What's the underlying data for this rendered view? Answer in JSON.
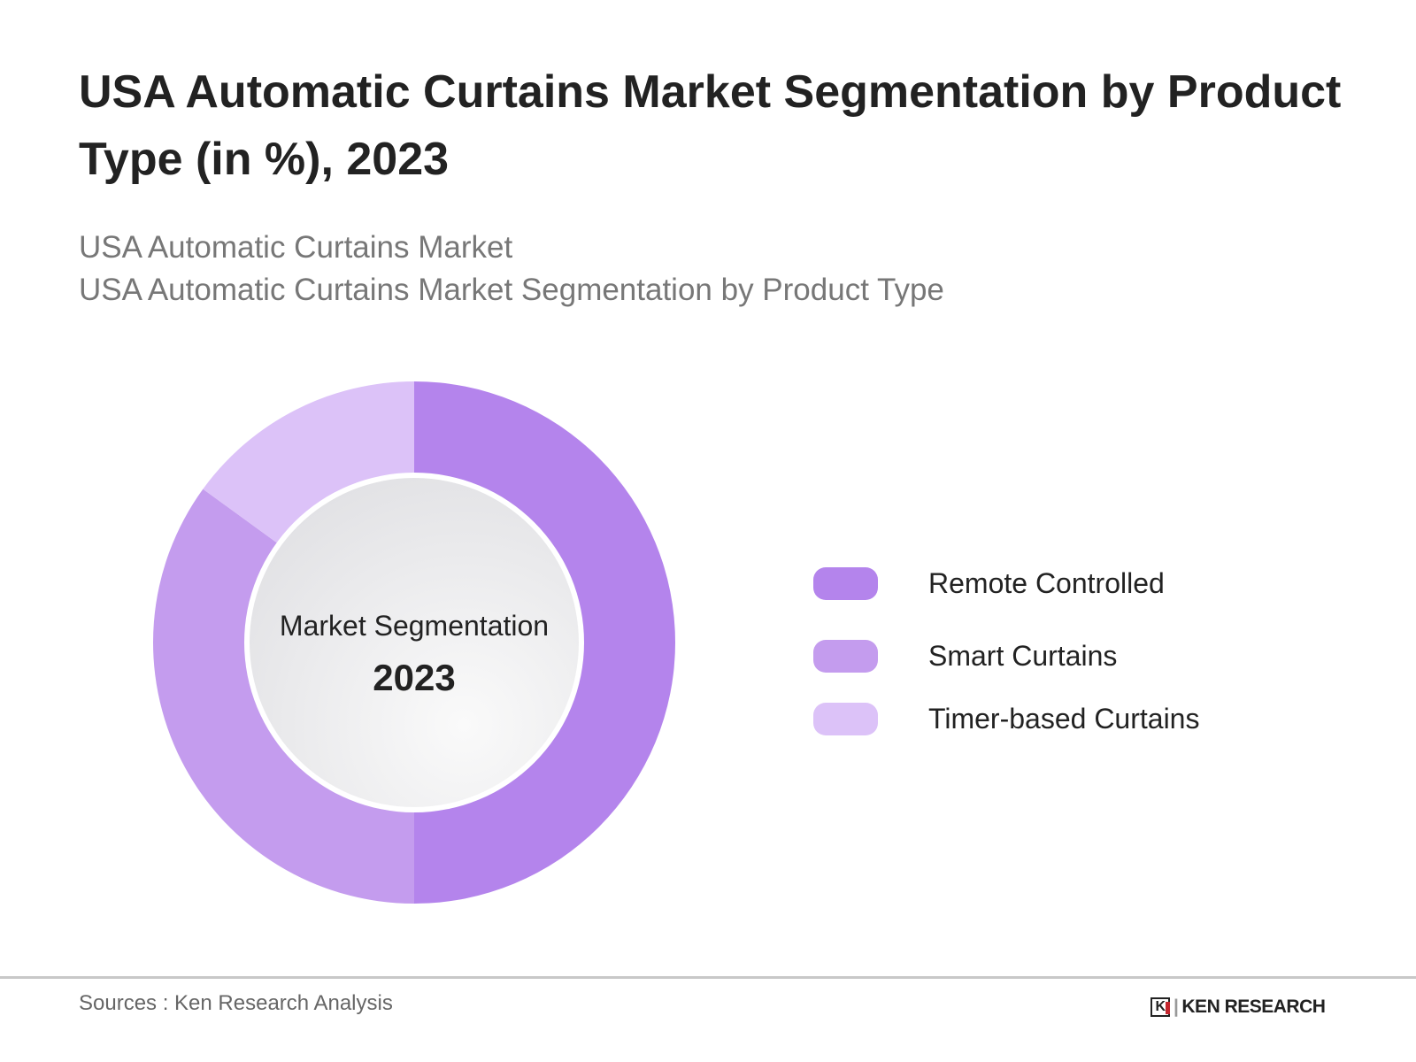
{
  "title": "USA Automatic Curtains Market Segmentation by Product Type (in %), 2023",
  "subtitle_lines": [
    "USA Automatic Curtains Market",
    "USA Automatic Curtains Market Segmentation by Product Type"
  ],
  "chart_data": {
    "type": "pie",
    "variant": "donut",
    "title": "USA Automatic Curtains Market Segmentation by Product Type (in %), 2023",
    "center_label": "Market Segmentation",
    "center_year": "2023",
    "categories": [
      "Remote Controlled",
      "Smart Curtains",
      "Timer-based Curtains"
    ],
    "values": [
      50,
      35,
      15
    ],
    "colors": [
      "#b484ec",
      "#c49cee",
      "#dcc2f8"
    ],
    "legend_position": "right"
  },
  "footer": {
    "source": "Sources : Ken Research Analysis",
    "logo_text": "KEN RESEARCH"
  }
}
